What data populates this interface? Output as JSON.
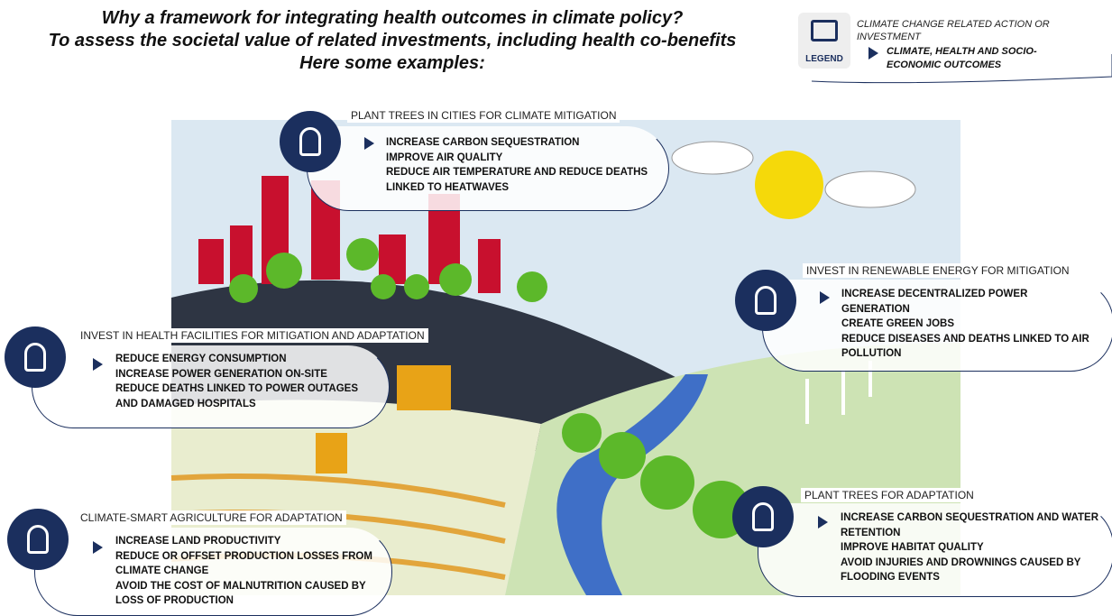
{
  "header": {
    "lines": [
      "Why a framework for integrating health outcomes in climate policy?",
      "To assess the societal value of related investments, including health co-benefits",
      "Here some examples:"
    ]
  },
  "legend": {
    "icon_label": "LEGEND",
    "action": "CLIMATE CHANGE RELATED ACTION OR INVESTMENT",
    "outcome": "CLIMATE, HEALTH AND SOCIO-ECONOMIC OUTCOMES"
  },
  "callouts": [
    {
      "title": "PLANT TREES IN CITIES FOR CLIMATE MITIGATION",
      "outcomes": [
        "INCREASE CARBON SEQUESTRATION",
        "IMPROVE AIR QUALITY",
        "REDUCE AIR TEMPERATURE AND REDUCE DEATHS LINKED TO HEATWAVES"
      ]
    },
    {
      "title": "INVEST IN HEALTH FACILITIES FOR MITIGATION AND ADAPTATION",
      "outcomes": [
        "REDUCE ENERGY CONSUMPTION",
        "INCREASE POWER GENERATION ON-SITE",
        "REDUCE DEATHS LINKED TO POWER OUTAGES AND DAMAGED HOSPITALS"
      ]
    },
    {
      "title": "CLIMATE-SMART AGRICULTURE FOR ADAPTATION",
      "outcomes": [
        "INCREASE LAND PRODUCTIVITY",
        "REDUCE OR OFFSET PRODUCTION LOSSES FROM CLIMATE CHANGE",
        "AVOID THE COST OF MALNUTRITION CAUSED BY LOSS OF PRODUCTION"
      ]
    },
    {
      "title": "INVEST IN RENEWABLE ENERGY FOR MITIGATION",
      "outcomes": [
        "INCREASE DECENTRALIZED POWER GENERATION",
        "CREATE GREEN JOBS",
        "REDUCE DISEASES AND DEATHS LINKED TO AIR POLLUTION"
      ]
    },
    {
      "title": "PLANT TREES FOR ADAPTATION",
      "outcomes": [
        "INCREASE CARBON SEQUESTRATION AND WATER RETENTION",
        "IMPROVE HABITAT QUALITY",
        "AVOID INJURIES AND DROWNINGS CAUSED BY FLOODING EVENTS"
      ]
    }
  ]
}
